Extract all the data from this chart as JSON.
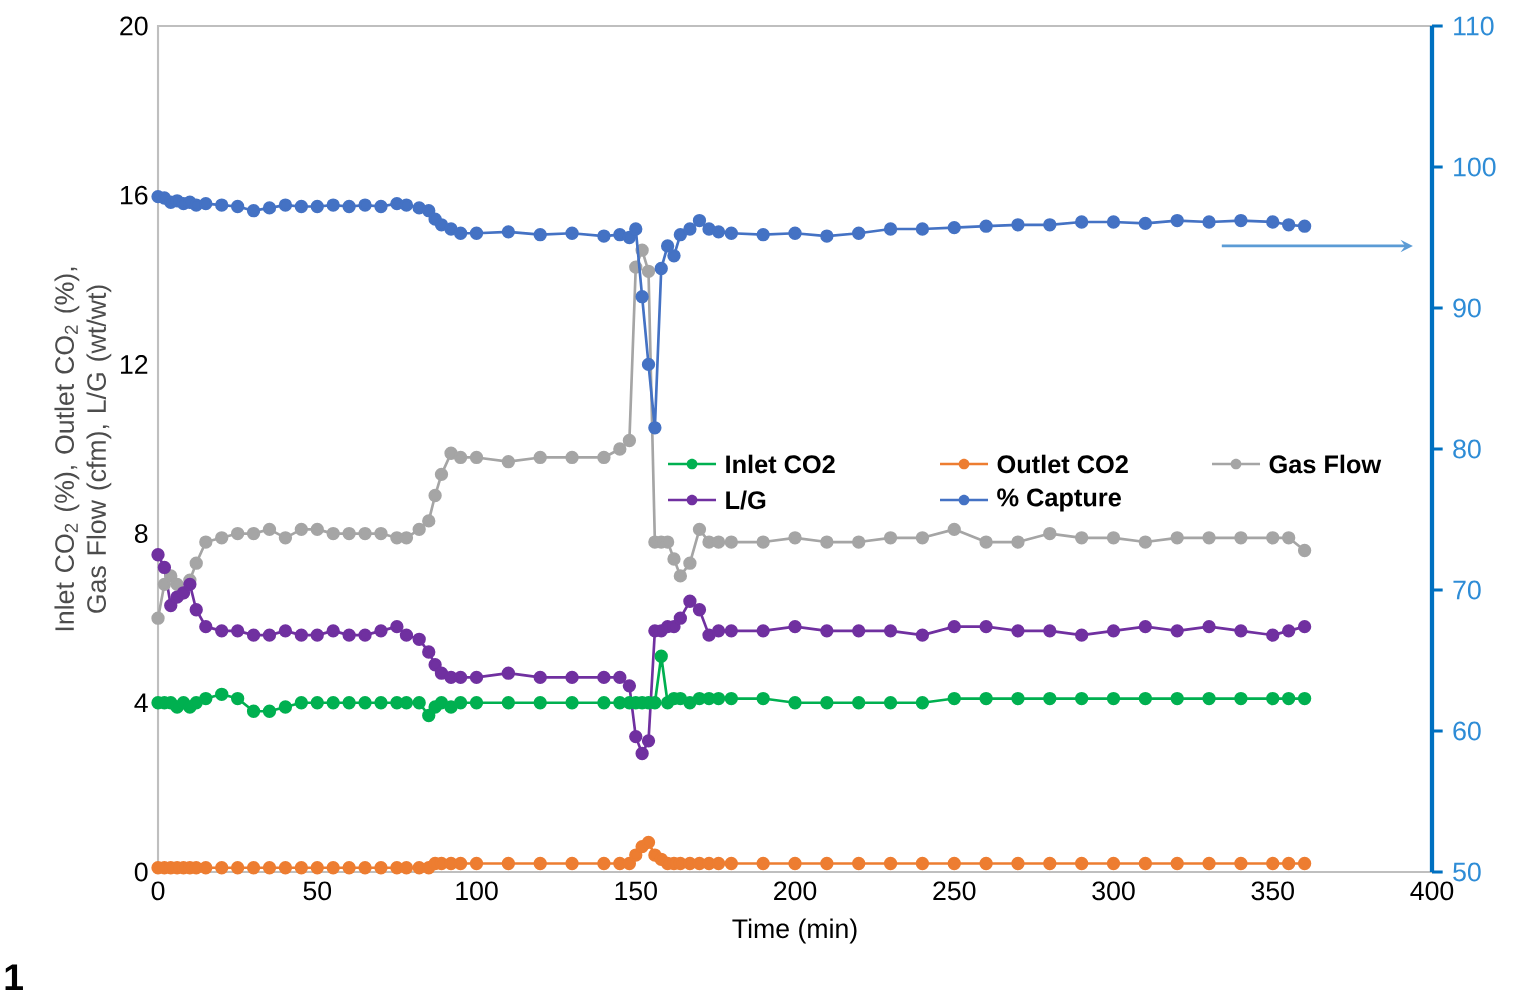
{
  "chart_data": {
    "type": "line",
    "xlabel": "Time (min)",
    "ylabel": "Inlet CO$_{2}$ (%), Outlet CO$_{2}$ (%), Gas Flow (cfm), L/G (wt/wt)",
    "annotations": [
      "1"
    ],
    "xlim": [
      0,
      400
    ],
    "xticks": [
      0,
      50,
      100,
      150,
      200,
      250,
      300,
      350,
      400
    ],
    "ylim": [
      0,
      20
    ],
    "yticks": [
      0,
      4,
      8,
      12,
      16,
      20
    ],
    "y2lim": [
      50,
      110
    ],
    "y2ticks": [
      50,
      60,
      70,
      80,
      90,
      100,
      110
    ],
    "legend": "right",
    "marker": "circle",
    "x": [
      0,
      2,
      4,
      6,
      8,
      10,
      12,
      15,
      20,
      25,
      30,
      35,
      40,
      45,
      50,
      55,
      60,
      65,
      70,
      75,
      78,
      82,
      85,
      87,
      89,
      92,
      95,
      100,
      110,
      120,
      130,
      140,
      145,
      148,
      150,
      152,
      154,
      156,
      158,
      160,
      162,
      164,
      167,
      170,
      173,
      176,
      180,
      190,
      200,
      210,
      220,
      230,
      240,
      250,
      260,
      270,
      280,
      290,
      300,
      310,
      320,
      330,
      340,
      350,
      355,
      360
    ],
    "series": [
      {
        "name": "Inlet CO2",
        "color": "#00b050",
        "values": [
          4.0,
          4.0,
          4.0,
          3.9,
          4.0,
          3.9,
          4.0,
          4.1,
          4.2,
          4.1,
          3.8,
          3.8,
          3.9,
          4.0,
          4.0,
          4.0,
          4.0,
          4.0,
          4.0,
          4.0,
          4.0,
          4.0,
          3.7,
          3.9,
          4.0,
          3.9,
          4.0,
          4.0,
          4.0,
          4.0,
          4.0,
          4.0,
          4.0,
          4.0,
          4.0,
          4.0,
          4.0,
          4.0,
          5.1,
          4.0,
          4.1,
          4.1,
          4.0,
          4.1,
          4.1,
          4.1,
          4.1,
          4.1,
          4.0,
          4.0,
          4.0,
          4.0,
          4.0,
          4.1,
          4.1,
          4.1,
          4.1,
          4.1,
          4.1,
          4.1,
          4.1,
          4.1,
          4.1,
          4.1,
          4.1,
          4.1
        ]
      },
      {
        "name": "Outlet CO2",
        "color": "#ed7d31",
        "values": [
          0.1,
          0.1,
          0.1,
          0.1,
          0.1,
          0.1,
          0.1,
          0.1,
          0.1,
          0.1,
          0.1,
          0.1,
          0.1,
          0.1,
          0.1,
          0.1,
          0.1,
          0.1,
          0.1,
          0.1,
          0.1,
          0.1,
          0.1,
          0.2,
          0.2,
          0.2,
          0.2,
          0.2,
          0.2,
          0.2,
          0.2,
          0.2,
          0.2,
          0.2,
          0.4,
          0.6,
          0.7,
          0.4,
          0.3,
          0.2,
          0.2,
          0.2,
          0.2,
          0.2,
          0.2,
          0.2,
          0.2,
          0.2,
          0.2,
          0.2,
          0.2,
          0.2,
          0.2,
          0.2,
          0.2,
          0.2,
          0.2,
          0.2,
          0.2,
          0.2,
          0.2,
          0.2,
          0.2,
          0.2,
          0.2,
          0.2
        ]
      },
      {
        "name": "Gas Flow",
        "color": "#a5a5a5",
        "values": [
          6.0,
          6.8,
          7.0,
          6.8,
          6.6,
          6.9,
          7.3,
          7.8,
          7.9,
          8.0,
          8.0,
          8.1,
          7.9,
          8.1,
          8.1,
          8.0,
          8.0,
          8.0,
          8.0,
          7.9,
          7.9,
          8.1,
          8.3,
          8.9,
          9.4,
          9.9,
          9.8,
          9.8,
          9.7,
          9.8,
          9.8,
          9.8,
          10.0,
          10.2,
          14.3,
          14.7,
          14.2,
          7.8,
          7.8,
          7.8,
          7.4,
          7.0,
          7.3,
          8.1,
          7.8,
          7.8,
          7.8,
          7.8,
          7.9,
          7.8,
          7.8,
          7.9,
          7.9,
          8.1,
          7.8,
          7.8,
          8.0,
          7.9,
          7.9,
          7.8,
          7.9,
          7.9,
          7.9,
          7.9,
          7.9,
          7.6
        ]
      },
      {
        "name": "L/G",
        "color": "#7030a0",
        "values": [
          7.5,
          7.2,
          6.3,
          6.5,
          6.6,
          6.8,
          6.2,
          5.8,
          5.7,
          5.7,
          5.6,
          5.6,
          5.7,
          5.6,
          5.6,
          5.7,
          5.6,
          5.6,
          5.7,
          5.8,
          5.6,
          5.5,
          5.2,
          4.9,
          4.7,
          4.6,
          4.6,
          4.6,
          4.7,
          4.6,
          4.6,
          4.6,
          4.6,
          4.4,
          3.2,
          2.8,
          3.1,
          5.7,
          5.7,
          5.8,
          5.8,
          6.0,
          6.4,
          6.2,
          5.6,
          5.7,
          5.7,
          5.7,
          5.8,
          5.7,
          5.7,
          5.7,
          5.6,
          5.8,
          5.8,
          5.7,
          5.7,
          5.6,
          5.7,
          5.8,
          5.7,
          5.8,
          5.7,
          5.6,
          5.7,
          5.8
        ]
      },
      {
        "name": "% Capture",
        "color": "#4472c4",
        "axis": "y2",
        "values": [
          97.9,
          97.8,
          97.5,
          97.6,
          97.4,
          97.5,
          97.3,
          97.4,
          97.3,
          97.2,
          96.9,
          97.1,
          97.3,
          97.2,
          97.2,
          97.3,
          97.2,
          97.3,
          97.2,
          97.4,
          97.3,
          97.1,
          96.9,
          96.3,
          95.9,
          95.6,
          95.3,
          95.3,
          95.4,
          95.2,
          95.3,
          95.1,
          95.2,
          95.0,
          95.6,
          90.8,
          86.0,
          81.5,
          92.8,
          94.4,
          93.7,
          95.2,
          95.6,
          96.2,
          95.6,
          95.4,
          95.3,
          95.2,
          95.3,
          95.1,
          95.3,
          95.6,
          95.6,
          95.7,
          95.8,
          95.9,
          95.9,
          96.1,
          96.1,
          96.0,
          96.2,
          96.1,
          96.2,
          96.1,
          95.9,
          95.8
        ]
      }
    ]
  }
}
